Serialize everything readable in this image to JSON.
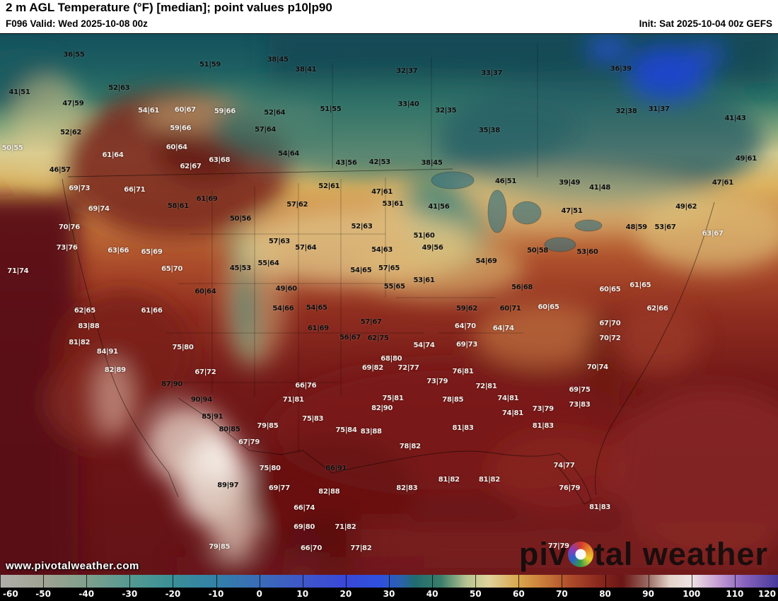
{
  "header": {
    "title": "2 m AGL Temperature (°F) [median]; point values p10|p90",
    "valid": "F096 Valid: Wed 2025-10-08 00z",
    "init": "Init: Sat 2025-10-04 00z GEFS"
  },
  "watermark": {
    "site": "www.pivotalweather.com",
    "brand_prefix": "piv",
    "brand_suffix": "tal weather"
  },
  "colorbar": {
    "min": -60,
    "max": 120,
    "ticks": [
      -60,
      -50,
      -40,
      -30,
      -20,
      -10,
      0,
      10,
      20,
      30,
      40,
      50,
      60,
      70,
      80,
      90,
      100,
      110,
      120
    ],
    "stops": [
      {
        "t": -60,
        "c": "#b0b0ab"
      },
      {
        "t": -50,
        "c": "#a1a392"
      },
      {
        "t": -40,
        "c": "#7fa08d"
      },
      {
        "t": -30,
        "c": "#559a92"
      },
      {
        "t": -20,
        "c": "#3a8f96"
      },
      {
        "t": -10,
        "c": "#3380a8"
      },
      {
        "t": 0,
        "c": "#3a6cb8"
      },
      {
        "t": 10,
        "c": "#3f57c9"
      },
      {
        "t": 20,
        "c": "#3948d8"
      },
      {
        "t": 28,
        "c": "#2f50dd"
      },
      {
        "t": 33,
        "c": "#2b62a8"
      },
      {
        "t": 36,
        "c": "#206b70"
      },
      {
        "t": 42,
        "c": "#3b7f6a"
      },
      {
        "t": 48,
        "c": "#b7c492"
      },
      {
        "t": 53,
        "c": "#e0d49c"
      },
      {
        "t": 60,
        "c": "#d9a54c"
      },
      {
        "t": 66,
        "c": "#c97939"
      },
      {
        "t": 72,
        "c": "#ae4b2b"
      },
      {
        "t": 78,
        "c": "#8d2a1e"
      },
      {
        "t": 84,
        "c": "#6b1616"
      },
      {
        "t": 90,
        "c": "#9b6b63"
      },
      {
        "t": 95,
        "c": "#e3d3c9"
      },
      {
        "t": 100,
        "c": "#efe3e3"
      },
      {
        "t": 106,
        "c": "#c79fd4"
      },
      {
        "t": 112,
        "c": "#8a64be"
      },
      {
        "t": 120,
        "c": "#46399c"
      }
    ]
  },
  "map": {
    "points": [
      {
        "x": 9.5,
        "y": 3.9,
        "v": "36|55",
        "c": "d"
      },
      {
        "x": 27.0,
        "y": 5.8,
        "v": "51|59",
        "c": "d"
      },
      {
        "x": 35.7,
        "y": 4.8,
        "v": "38|45",
        "c": "d"
      },
      {
        "x": 39.3,
        "y": 6.7,
        "v": "38|41",
        "c": "d"
      },
      {
        "x": 52.3,
        "y": 6.9,
        "v": "32|37",
        "c": "d"
      },
      {
        "x": 63.2,
        "y": 7.3,
        "v": "33|37",
        "c": "d"
      },
      {
        "x": 79.8,
        "y": 6.5,
        "v": "36|39",
        "c": "d"
      },
      {
        "x": 2.5,
        "y": 10.8,
        "v": "41|51",
        "c": "d"
      },
      {
        "x": 15.3,
        "y": 10.1,
        "v": "52|63",
        "c": "d"
      },
      {
        "x": 9.4,
        "y": 12.9,
        "v": "47|59",
        "c": "d"
      },
      {
        "x": 19.1,
        "y": 14.2,
        "v": "54|61",
        "c": "l"
      },
      {
        "x": 23.8,
        "y": 14.1,
        "v": "60|67",
        "c": "l"
      },
      {
        "x": 28.9,
        "y": 14.4,
        "v": "59|66",
        "c": "l"
      },
      {
        "x": 35.3,
        "y": 14.6,
        "v": "52|64",
        "c": "d"
      },
      {
        "x": 42.5,
        "y": 14.0,
        "v": "51|55",
        "c": "d"
      },
      {
        "x": 52.5,
        "y": 13.1,
        "v": "33|40",
        "c": "d"
      },
      {
        "x": 57.3,
        "y": 14.2,
        "v": "32|35",
        "c": "d"
      },
      {
        "x": 80.5,
        "y": 14.4,
        "v": "32|38",
        "c": "d"
      },
      {
        "x": 84.7,
        "y": 14.0,
        "v": "31|37",
        "c": "d"
      },
      {
        "x": 94.5,
        "y": 15.7,
        "v": "41|43",
        "c": "d"
      },
      {
        "x": 9.1,
        "y": 18.3,
        "v": "52|62",
        "c": "d"
      },
      {
        "x": 23.2,
        "y": 17.5,
        "v": "59|66",
        "c": "l"
      },
      {
        "x": 34.1,
        "y": 17.8,
        "v": "57|64",
        "c": "d"
      },
      {
        "x": 62.9,
        "y": 17.9,
        "v": "35|38",
        "c": "d"
      },
      {
        "x": 1.6,
        "y": 21.2,
        "v": "50|55",
        "c": "l"
      },
      {
        "x": 22.7,
        "y": 21.0,
        "v": "60|64",
        "c": "l"
      },
      {
        "x": 37.1,
        "y": 22.2,
        "v": "54|64",
        "c": "d"
      },
      {
        "x": 14.5,
        "y": 22.4,
        "v": "61|64",
        "c": "l"
      },
      {
        "x": 24.5,
        "y": 24.6,
        "v": "62|67",
        "c": "l"
      },
      {
        "x": 28.2,
        "y": 23.4,
        "v": "63|68",
        "c": "l"
      },
      {
        "x": 44.5,
        "y": 23.9,
        "v": "43|56",
        "c": "d"
      },
      {
        "x": 48.8,
        "y": 23.7,
        "v": "42|53",
        "c": "d"
      },
      {
        "x": 55.5,
        "y": 23.9,
        "v": "38|45",
        "c": "d"
      },
      {
        "x": 7.7,
        "y": 25.2,
        "v": "46|57",
        "c": "d"
      },
      {
        "x": 65.0,
        "y": 27.3,
        "v": "46|51",
        "c": "d"
      },
      {
        "x": 73.2,
        "y": 27.6,
        "v": "39|49",
        "c": "d"
      },
      {
        "x": 77.1,
        "y": 28.5,
        "v": "41|48",
        "c": "d"
      },
      {
        "x": 95.9,
        "y": 23.1,
        "v": "49|61",
        "c": "d"
      },
      {
        "x": 42.3,
        "y": 28.2,
        "v": "52|61",
        "c": "d"
      },
      {
        "x": 49.1,
        "y": 29.2,
        "v": "47|61",
        "c": "d"
      },
      {
        "x": 17.3,
        "y": 28.8,
        "v": "66|71",
        "c": "l"
      },
      {
        "x": 10.2,
        "y": 28.6,
        "v": "69|73",
        "c": "l"
      },
      {
        "x": 22.9,
        "y": 31.9,
        "v": "58|61",
        "c": "d"
      },
      {
        "x": 26.6,
        "y": 30.5,
        "v": "61|69",
        "c": "d"
      },
      {
        "x": 38.2,
        "y": 31.6,
        "v": "57|62",
        "c": "d"
      },
      {
        "x": 50.5,
        "y": 31.5,
        "v": "53|61",
        "c": "d"
      },
      {
        "x": 56.4,
        "y": 32.0,
        "v": "41|56",
        "c": "d"
      },
      {
        "x": 73.5,
        "y": 32.8,
        "v": "47|51",
        "c": "d"
      },
      {
        "x": 88.2,
        "y": 32.0,
        "v": "49|62",
        "c": "d"
      },
      {
        "x": 92.9,
        "y": 27.6,
        "v": "47|61",
        "c": "d"
      },
      {
        "x": 12.7,
        "y": 32.4,
        "v": "69|74",
        "c": "l"
      },
      {
        "x": 8.9,
        "y": 35.8,
        "v": "70|76",
        "c": "l"
      },
      {
        "x": 30.9,
        "y": 34.2,
        "v": "50|56",
        "c": "d"
      },
      {
        "x": 46.5,
        "y": 35.6,
        "v": "52|63",
        "c": "d"
      },
      {
        "x": 54.5,
        "y": 37.4,
        "v": "51|60",
        "c": "d"
      },
      {
        "x": 55.6,
        "y": 39.6,
        "v": "49|56",
        "c": "d"
      },
      {
        "x": 69.1,
        "y": 40.1,
        "v": "50|58",
        "c": "d"
      },
      {
        "x": 75.5,
        "y": 40.3,
        "v": "53|60",
        "c": "d"
      },
      {
        "x": 15.2,
        "y": 40.1,
        "v": "63|66",
        "c": "l"
      },
      {
        "x": 19.5,
        "y": 40.4,
        "v": "65|69",
        "c": "l"
      },
      {
        "x": 8.6,
        "y": 39.6,
        "v": "73|76",
        "c": "l"
      },
      {
        "x": 2.3,
        "y": 43.8,
        "v": "71|74",
        "c": "l"
      },
      {
        "x": 22.1,
        "y": 43.5,
        "v": "65|70",
        "c": "l"
      },
      {
        "x": 30.9,
        "y": 43.4,
        "v": "45|53",
        "c": "d"
      },
      {
        "x": 34.5,
        "y": 42.4,
        "v": "55|64",
        "c": "d"
      },
      {
        "x": 35.9,
        "y": 38.4,
        "v": "57|63",
        "c": "d"
      },
      {
        "x": 39.3,
        "y": 39.5,
        "v": "57|64",
        "c": "d"
      },
      {
        "x": 49.1,
        "y": 39.9,
        "v": "54|63",
        "c": "d"
      },
      {
        "x": 46.4,
        "y": 43.7,
        "v": "54|65",
        "c": "d"
      },
      {
        "x": 50.0,
        "y": 43.4,
        "v": "57|65",
        "c": "d"
      },
      {
        "x": 54.5,
        "y": 45.6,
        "v": "53|61",
        "c": "d"
      },
      {
        "x": 62.5,
        "y": 42.1,
        "v": "54|69",
        "c": "d"
      },
      {
        "x": 67.1,
        "y": 46.9,
        "v": "56|68",
        "c": "d"
      },
      {
        "x": 36.8,
        "y": 47.1,
        "v": "49|60",
        "c": "d"
      },
      {
        "x": 26.4,
        "y": 47.7,
        "v": "60|64",
        "c": "d"
      },
      {
        "x": 36.4,
        "y": 50.8,
        "v": "54|66",
        "c": "d"
      },
      {
        "x": 40.7,
        "y": 50.7,
        "v": "54|65",
        "c": "d"
      },
      {
        "x": 19.5,
        "y": 51.2,
        "v": "61|66",
        "c": "l"
      },
      {
        "x": 10.9,
        "y": 51.2,
        "v": "62|65",
        "c": "l"
      },
      {
        "x": 50.7,
        "y": 46.8,
        "v": "55|65",
        "c": "d"
      },
      {
        "x": 60.0,
        "y": 50.8,
        "v": "59|62",
        "c": "d"
      },
      {
        "x": 65.6,
        "y": 50.8,
        "v": "60|71",
        "c": "d"
      },
      {
        "x": 70.5,
        "y": 50.5,
        "v": "60|65",
        "c": "l"
      },
      {
        "x": 82.3,
        "y": 46.5,
        "v": "61|65",
        "c": "l"
      },
      {
        "x": 78.4,
        "y": 47.3,
        "v": "60|65",
        "c": "l"
      },
      {
        "x": 84.5,
        "y": 50.8,
        "v": "62|66",
        "c": "l"
      },
      {
        "x": 81.8,
        "y": 35.8,
        "v": "48|59",
        "c": "d"
      },
      {
        "x": 85.5,
        "y": 35.8,
        "v": "53|67",
        "c": "d"
      },
      {
        "x": 91.6,
        "y": 36.9,
        "v": "63|67",
        "c": "l"
      },
      {
        "x": 11.4,
        "y": 54.1,
        "v": "83|88",
        "c": "l"
      },
      {
        "x": 47.7,
        "y": 53.2,
        "v": "57|67",
        "c": "d"
      },
      {
        "x": 40.9,
        "y": 54.5,
        "v": "61|69",
        "c": "d"
      },
      {
        "x": 45.0,
        "y": 56.1,
        "v": "56|67",
        "c": "d"
      },
      {
        "x": 48.6,
        "y": 56.3,
        "v": "62|75",
        "c": "d"
      },
      {
        "x": 59.8,
        "y": 54.1,
        "v": "64|70",
        "c": "l"
      },
      {
        "x": 64.7,
        "y": 54.4,
        "v": "64|74",
        "c": "l"
      },
      {
        "x": 78.4,
        "y": 53.5,
        "v": "67|70",
        "c": "l"
      },
      {
        "x": 78.4,
        "y": 56.3,
        "v": "70|72",
        "c": "l"
      },
      {
        "x": 10.2,
        "y": 57.1,
        "v": "81|82",
        "c": "l"
      },
      {
        "x": 13.8,
        "y": 58.7,
        "v": "84|91",
        "c": "l"
      },
      {
        "x": 23.5,
        "y": 57.9,
        "v": "75|80",
        "c": "l"
      },
      {
        "x": 54.5,
        "y": 57.6,
        "v": "54|74",
        "c": "l"
      },
      {
        "x": 50.3,
        "y": 60.1,
        "v": "68|80",
        "c": "l"
      },
      {
        "x": 60.0,
        "y": 57.5,
        "v": "69|73",
        "c": "l"
      },
      {
        "x": 47.9,
        "y": 61.8,
        "v": "69|82",
        "c": "l"
      },
      {
        "x": 52.5,
        "y": 61.8,
        "v": "72|77",
        "c": "l"
      },
      {
        "x": 14.8,
        "y": 62.1,
        "v": "82|89",
        "c": "l"
      },
      {
        "x": 26.4,
        "y": 62.5,
        "v": "67|72",
        "c": "l"
      },
      {
        "x": 39.3,
        "y": 65.0,
        "v": "66|76",
        "c": "l"
      },
      {
        "x": 56.2,
        "y": 64.2,
        "v": "73|79",
        "c": "l"
      },
      {
        "x": 59.5,
        "y": 62.4,
        "v": "76|81",
        "c": "l"
      },
      {
        "x": 62.5,
        "y": 65.2,
        "v": "72|81",
        "c": "l"
      },
      {
        "x": 76.8,
        "y": 61.6,
        "v": "70|74",
        "c": "l"
      },
      {
        "x": 74.5,
        "y": 65.8,
        "v": "69|75",
        "c": "l"
      },
      {
        "x": 22.1,
        "y": 64.7,
        "v": "87|90",
        "c": "d"
      },
      {
        "x": 25.9,
        "y": 67.6,
        "v": "90|94",
        "c": "d"
      },
      {
        "x": 37.7,
        "y": 67.6,
        "v": "71|81",
        "c": "l"
      },
      {
        "x": 50.5,
        "y": 67.3,
        "v": "75|81",
        "c": "l"
      },
      {
        "x": 58.2,
        "y": 67.6,
        "v": "78|85",
        "c": "l"
      },
      {
        "x": 65.3,
        "y": 67.3,
        "v": "74|81",
        "c": "l"
      },
      {
        "x": 69.8,
        "y": 69.3,
        "v": "73|79",
        "c": "l"
      },
      {
        "x": 74.5,
        "y": 68.6,
        "v": "73|83",
        "c": "l"
      },
      {
        "x": 49.1,
        "y": 69.2,
        "v": "82|90",
        "c": "l"
      },
      {
        "x": 27.3,
        "y": 70.8,
        "v": "85|91",
        "c": "d"
      },
      {
        "x": 40.2,
        "y": 71.2,
        "v": "75|83",
        "c": "l"
      },
      {
        "x": 44.5,
        "y": 73.2,
        "v": "75|84",
        "c": "l"
      },
      {
        "x": 29.5,
        "y": 73.1,
        "v": "80|85",
        "c": "d"
      },
      {
        "x": 34.4,
        "y": 72.4,
        "v": "79|85",
        "c": "l"
      },
      {
        "x": 59.5,
        "y": 72.8,
        "v": "81|83",
        "c": "l"
      },
      {
        "x": 65.9,
        "y": 70.1,
        "v": "74|81",
        "c": "l"
      },
      {
        "x": 69.8,
        "y": 72.5,
        "v": "81|83",
        "c": "l"
      },
      {
        "x": 47.7,
        "y": 73.5,
        "v": "83|88",
        "c": "l"
      },
      {
        "x": 32.0,
        "y": 75.4,
        "v": "67|79",
        "c": "l"
      },
      {
        "x": 52.7,
        "y": 76.3,
        "v": "78|82",
        "c": "l"
      },
      {
        "x": 57.7,
        "y": 82.4,
        "v": "81|82",
        "c": "l"
      },
      {
        "x": 62.9,
        "y": 82.4,
        "v": "81|82",
        "c": "l"
      },
      {
        "x": 52.3,
        "y": 83.9,
        "v": "82|83",
        "c": "l"
      },
      {
        "x": 43.2,
        "y": 80.3,
        "v": "86|91",
        "c": "d"
      },
      {
        "x": 34.7,
        "y": 80.3,
        "v": "75|80",
        "c": "l"
      },
      {
        "x": 29.3,
        "y": 83.4,
        "v": "89|97",
        "c": "d"
      },
      {
        "x": 72.5,
        "y": 79.7,
        "v": "74|77",
        "c": "l"
      },
      {
        "x": 73.2,
        "y": 83.9,
        "v": "76|79",
        "c": "l"
      },
      {
        "x": 35.9,
        "y": 83.9,
        "v": "69|77",
        "c": "l"
      },
      {
        "x": 42.3,
        "y": 84.6,
        "v": "82|88",
        "c": "l"
      },
      {
        "x": 77.1,
        "y": 87.5,
        "v": "81|83",
        "c": "l"
      },
      {
        "x": 39.1,
        "y": 87.6,
        "v": "66|74",
        "c": "l"
      },
      {
        "x": 39.1,
        "y": 91.1,
        "v": "69|80",
        "c": "l"
      },
      {
        "x": 44.4,
        "y": 91.1,
        "v": "71|82",
        "c": "l"
      },
      {
        "x": 40.0,
        "y": 95.0,
        "v": "66|70",
        "c": "l"
      },
      {
        "x": 46.4,
        "y": 95.0,
        "v": "77|82",
        "c": "l"
      },
      {
        "x": 28.2,
        "y": 94.8,
        "v": "79|85",
        "c": "l"
      },
      {
        "x": 71.8,
        "y": 94.6,
        "v": "77|79",
        "c": "l"
      }
    ]
  }
}
